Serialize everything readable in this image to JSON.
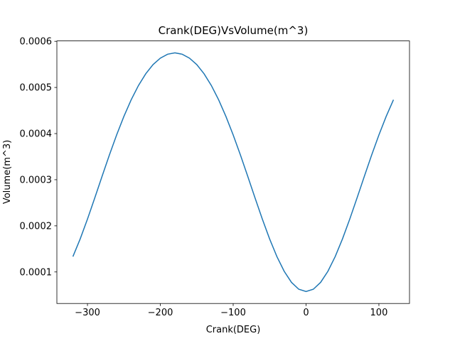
{
  "chart_data": {
    "type": "line",
    "title": "Crank(DEG)VsVolume(m^3)",
    "x_label": "Crank(DEG)",
    "y_label": "Volume(m^3)",
    "color": "#1f77b4",
    "x": [
      -320,
      -310,
      -300,
      -290,
      -280,
      -270,
      -260,
      -250,
      -240,
      -230,
      -220,
      -210,
      -200,
      -190,
      -180,
      -170,
      -160,
      -150,
      -140,
      -130,
      -120,
      -110,
      -100,
      -90,
      -80,
      -70,
      -60,
      -50,
      -40,
      -30,
      -20,
      -10,
      0,
      10,
      20,
      30,
      40,
      50,
      60,
      70,
      80,
      90,
      100,
      110,
      120
    ],
    "values": [
      0.0001333,
      0.0001716,
      0.0002146,
      0.0002604,
      0.0003072,
      0.0003532,
      0.000397,
      0.0004373,
      0.0004733,
      0.0005043,
      0.0005297,
      0.0005496,
      0.0005636,
      0.0005721,
      0.000575,
      0.0005721,
      0.0005636,
      0.0005496,
      0.0005297,
      0.0005043,
      0.0004733,
      0.0004373,
      0.000397,
      0.0003532,
      0.0003072,
      0.0002604,
      0.0002146,
      0.0001716,
      0.0001333,
      0.0001014,
      7.74e-05,
      6.25e-05,
      5.75e-05,
      6.25e-05,
      7.74e-05,
      0.0001014,
      0.0001333,
      0.0001716,
      0.0002146,
      0.0002604,
      0.0003072,
      0.0003532,
      0.000397,
      0.0004373,
      0.0004733
    ],
    "xlim": [
      -342,
      142
    ],
    "ylim": [
      3.16e-05,
      0.0006009
    ],
    "xticks": [
      {
        "value": -300,
        "label": "−300"
      },
      {
        "value": -200,
        "label": "−200"
      },
      {
        "value": -100,
        "label": "−100"
      },
      0,
      100
    ],
    "yticks": [
      0.0001,
      0.0002,
      0.0003,
      0.0004,
      0.0005,
      0.0006
    ],
    "grid": false
  }
}
